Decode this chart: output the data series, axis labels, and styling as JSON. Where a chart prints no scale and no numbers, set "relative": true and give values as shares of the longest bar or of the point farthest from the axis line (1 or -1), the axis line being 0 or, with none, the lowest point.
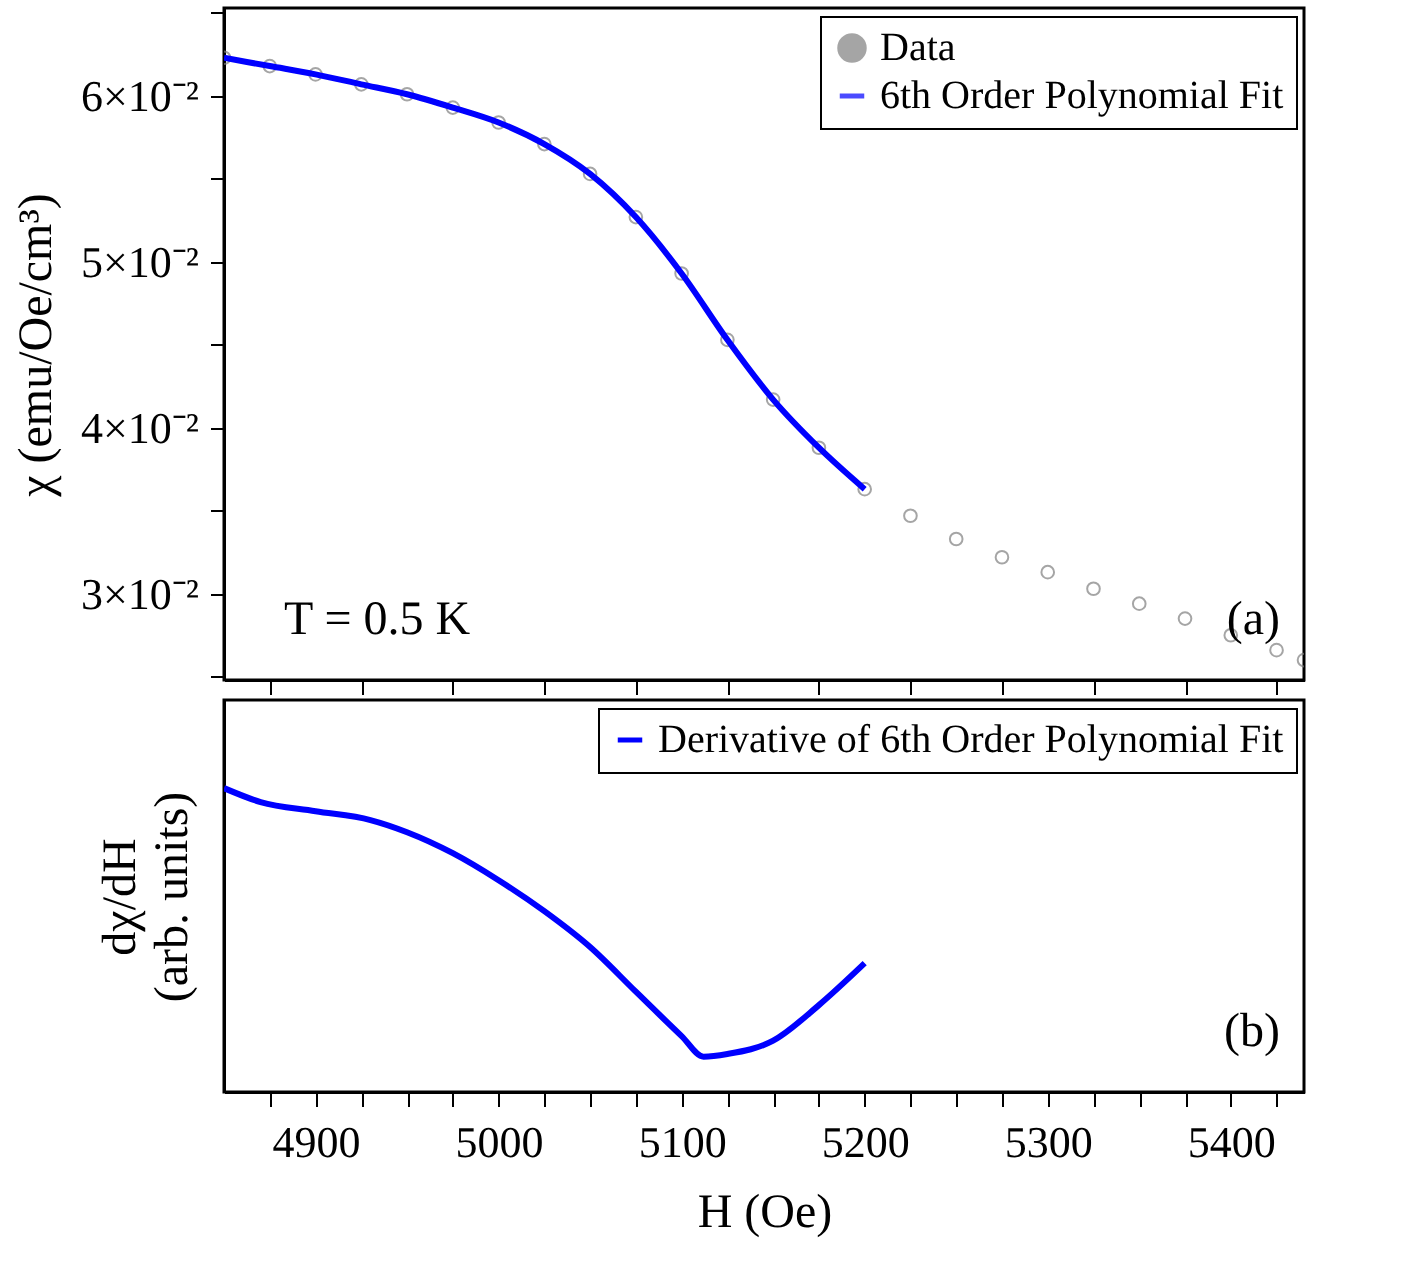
{
  "chart_data": [
    {
      "type": "scatter",
      "ylabel": "χ (emu/Oe/cm³)",
      "legend": "top right",
      "tick_labels": "y",
      "grid": false,
      "xlim": [
        4850,
        5440
      ],
      "ylim": [
        0.0248,
        0.0653
      ],
      "xticks": [
        {
          "value": 4875,
          "label": null
        },
        4900,
        {
          "value": 4925,
          "label": null
        },
        {
          "value": 4950,
          "label": null
        },
        {
          "value": 4975,
          "label": null
        },
        5000,
        {
          "value": 5025,
          "label": null
        },
        {
          "value": 5050,
          "label": null
        },
        {
          "value": 5075,
          "label": null
        },
        5100,
        {
          "value": 5125,
          "label": null
        },
        {
          "value": 5150,
          "label": null
        },
        {
          "value": 5175,
          "label": null
        },
        5200,
        {
          "value": 5225,
          "label": null
        },
        {
          "value": 5250,
          "label": null
        },
        {
          "value": 5275,
          "label": null
        },
        5300,
        {
          "value": 5325,
          "label": null
        },
        {
          "value": 5350,
          "label": null
        },
        {
          "value": 5375,
          "label": null
        },
        5400,
        {
          "value": 5425,
          "label": null
        }
      ],
      "yticks": [
        {
          "value": 0.025,
          "label": null
        },
        {
          "value": 0.03,
          "label": "3×10⁻²"
        },
        {
          "value": 0.035,
          "label": null
        },
        {
          "value": 0.04,
          "label": "4×10⁻²"
        },
        {
          "value": 0.045,
          "label": null
        },
        {
          "value": 0.05,
          "label": "5×10⁻²"
        },
        {
          "value": 0.055,
          "label": null
        },
        {
          "value": 0.06,
          "label": "6×10⁻²"
        },
        {
          "value": 0.065,
          "label": null
        }
      ],
      "annotations": [
        "T = 0.5 K",
        "(a)"
      ],
      "series": [
        {
          "name": "Data",
          "marker": "circle",
          "color": "#808080",
          "x": [
            4850,
            4875,
            4900,
            4925,
            4950,
            4975,
            5000,
            5025,
            5050,
            5075,
            5100,
            5125,
            5150,
            5175,
            5200,
            5225,
            5250,
            5275,
            5300,
            5325,
            5350,
            5375,
            5400,
            5425,
            5440
          ],
          "values": [
            0.0623,
            0.0618,
            0.0613,
            0.0607,
            0.0601,
            0.0593,
            0.0584,
            0.0571,
            0.0553,
            0.0527,
            0.0493,
            0.0453,
            0.0417,
            0.0388,
            0.0363,
            0.0347,
            0.0333,
            0.0322,
            0.0313,
            0.0303,
            0.0294,
            0.0285,
            0.0275,
            0.0266,
            0.026
          ]
        },
        {
          "name": "6th Order Polynomial Fit",
          "type": "line",
          "color": "#0000ff",
          "x": [
            4850,
            4875,
            4900,
            4925,
            4950,
            4975,
            5000,
            5025,
            5050,
            5075,
            5100,
            5125,
            5150,
            5175,
            5200
          ],
          "values": [
            0.0623,
            0.0618,
            0.0613,
            0.0607,
            0.0601,
            0.0593,
            0.0584,
            0.0571,
            0.0553,
            0.0527,
            0.0493,
            0.0453,
            0.0417,
            0.0388,
            0.0363
          ]
        }
      ]
    },
    {
      "type": "line",
      "relative": true,
      "xlabel": "H (Oe)",
      "ylabel": "dχ/dH (arb. units)",
      "legend": "top right",
      "tick_labels": "x",
      "grid": false,
      "xlim": [
        4850,
        5440
      ],
      "xticks": [
        {
          "value": 4875,
          "label": null
        },
        4900,
        {
          "value": 4925,
          "label": null
        },
        {
          "value": 4950,
          "label": null
        },
        {
          "value": 4975,
          "label": null
        },
        5000,
        {
          "value": 5025,
          "label": null
        },
        {
          "value": 5050,
          "label": null
        },
        {
          "value": 5075,
          "label": null
        },
        5100,
        {
          "value": 5125,
          "label": null
        },
        {
          "value": 5150,
          "label": null
        },
        {
          "value": 5175,
          "label": null
        },
        5200,
        {
          "value": 5225,
          "label": null
        },
        {
          "value": 5250,
          "label": null
        },
        {
          "value": 5275,
          "label": null
        },
        5300,
        {
          "value": 5325,
          "label": null
        },
        {
          "value": 5350,
          "label": null
        },
        {
          "value": 5375,
          "label": null
        },
        5400,
        {
          "value": 5425,
          "label": null
        }
      ],
      "annotations": [
        "(b)"
      ],
      "series": [
        {
          "name": "Derivative of 6th Order Polynomial Fit",
          "color": "#0000ff",
          "x": [
            4850,
            4870,
            4900,
            4930,
            4950,
            4975,
            5000,
            5025,
            5050,
            5075,
            5100,
            5112,
            5125,
            5150,
            5175,
            5200
          ],
          "values": [
            1,
            0.954,
            0.924,
            0.895,
            0.855,
            0.786,
            0.697,
            0.595,
            0.477,
            0.33,
            0.184,
            0.116,
            0.125,
            0.169,
            0.286,
            0.424
          ]
        }
      ]
    }
  ]
}
